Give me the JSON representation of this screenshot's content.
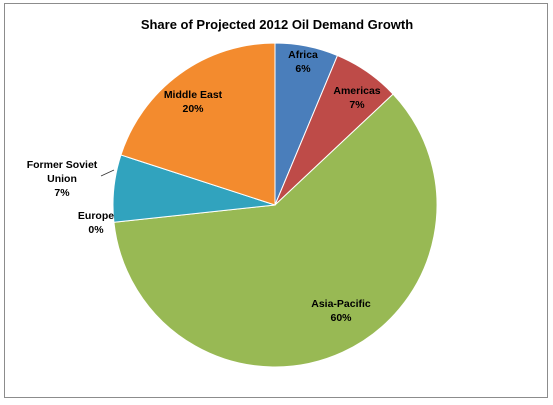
{
  "chart_data": {
    "type": "pie",
    "title": "Share of Projected 2012 Oil Demand Growth",
    "start_angle_deg": 0,
    "direction": "clockwise",
    "slices": [
      {
        "label": "Africa",
        "label_lines": [
          "Africa",
          "6%"
        ],
        "value": 6.3,
        "percent_label": "6%",
        "color": "#4a7ebb",
        "label_color": "#000000"
      },
      {
        "label": "Americas",
        "label_lines": [
          "Americas",
          "7%"
        ],
        "value": 6.7,
        "percent_label": "7%",
        "color": "#be4b48",
        "label_color": "#000000"
      },
      {
        "label": "Asia-Pacific",
        "label_lines": [
          "Asia-Pacific",
          "60%"
        ],
        "value": 60.3,
        "percent_label": "60%",
        "color": "#98b954",
        "label_color": "#000000"
      },
      {
        "label": "Europe",
        "label_lines": [
          "Europe",
          "0%"
        ],
        "value": 0.0,
        "percent_label": "0%",
        "color": "#7d60a0",
        "label_color": "#000000"
      },
      {
        "label": "Former Soviet Union",
        "label_lines": [
          "Former Soviet",
          "Union",
          "7%"
        ],
        "value": 6.7,
        "percent_label": "7%",
        "color": "#31a3be",
        "label_color": "#000000"
      },
      {
        "label": "Middle East",
        "label_lines": [
          "Middle East",
          "20%"
        ],
        "value": 20.0,
        "percent_label": "20%",
        "color": "#f38b2e",
        "label_color": "#000000"
      }
    ]
  }
}
